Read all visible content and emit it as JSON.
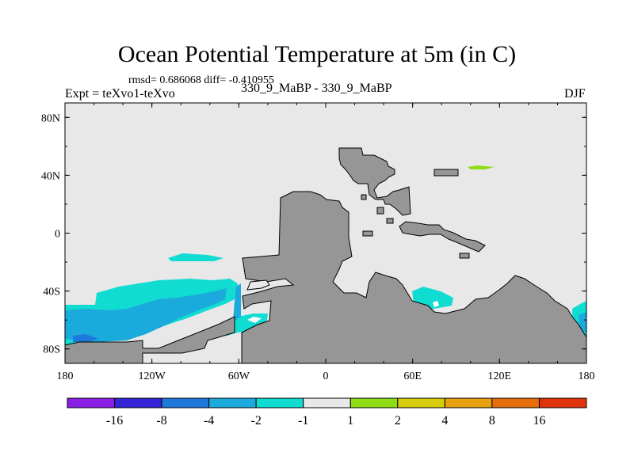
{
  "chart_data": {
    "type": "heatmap",
    "title": "Ocean Potential Temperature at 5m (in C)",
    "stats_line": "rmsd= 0.686068  diff= -0.410955",
    "left_label": "Expt = teXvo1-teXvo",
    "center_label": "330_9_MaBP - 330_9_MaBP",
    "right_label": "DJF",
    "xlabel": "",
    "ylabel": "",
    "xlim": [
      -180,
      180
    ],
    "ylim": [
      -90,
      90
    ],
    "x_ticks": [
      {
        "value": -180,
        "label": "180"
      },
      {
        "value": -120,
        "label": "120W"
      },
      {
        "value": -60,
        "label": "60W"
      },
      {
        "value": 0,
        "label": "0"
      },
      {
        "value": 60,
        "label": "60E"
      },
      {
        "value": 120,
        "label": "120E"
      },
      {
        "value": 180,
        "label": "180"
      }
    ],
    "y_ticks": [
      {
        "value": 80,
        "label": "80N"
      },
      {
        "value": 40,
        "label": "40N"
      },
      {
        "value": 0,
        "label": "0"
      },
      {
        "value": -40,
        "label": "40S"
      },
      {
        "value": -80,
        "label": "80S"
      }
    ],
    "colorbar": {
      "colors": [
        "#8a1ee6",
        "#3223d8",
        "#1f78dc",
        "#1aaadc",
        "#11dcd2",
        "#e8e8e8",
        "#8edc14",
        "#d6cc0c",
        "#e6a00c",
        "#e66e0a",
        "#e0320c"
      ],
      "levels": [
        "-16",
        "-8",
        "-4",
        "-2",
        "-1",
        "1",
        "2",
        "4",
        "8",
        "16"
      ]
    },
    "land_color": "#969696",
    "background_value_color": "#e8e8e8"
  }
}
